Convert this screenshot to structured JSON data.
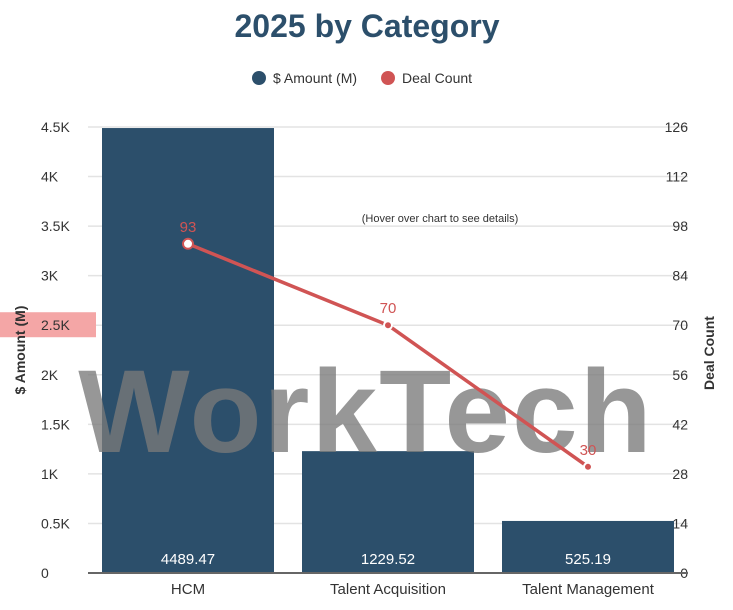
{
  "chart_data": {
    "type": "bar",
    "title": "2025 by Category",
    "categories": [
      "HCM",
      "Talent Acquisition",
      "Talent Management"
    ],
    "series": [
      {
        "name": "$ Amount (M)",
        "type": "bar",
        "axis": "left",
        "values": [
          4489.47,
          1229.52,
          525.19
        ],
        "color": "#2c4f6b"
      },
      {
        "name": "Deal Count",
        "type": "line",
        "axis": "right",
        "values": [
          93,
          70,
          30
        ],
        "color": "#d05454"
      }
    ],
    "ylabel": "$ Amount (M)",
    "y2label": "Deal Count",
    "ylim": [
      0,
      4500
    ],
    "y2lim": [
      0,
      126
    ],
    "yticks": [
      {
        "value": 0,
        "label": "0"
      },
      {
        "value": 500,
        "label": "0.5K"
      },
      {
        "value": 1000,
        "label": "1K"
      },
      {
        "value": 1500,
        "label": "1.5K"
      },
      {
        "value": 2000,
        "label": "2K"
      },
      {
        "value": 2500,
        "label": "2.5K"
      },
      {
        "value": 3000,
        "label": "3K"
      },
      {
        "value": 3500,
        "label": "3.5K"
      },
      {
        "value": 4000,
        "label": "4K"
      },
      {
        "value": 4500,
        "label": "4.5K"
      }
    ],
    "y2ticks": [
      {
        "value": 0,
        "label": "0"
      },
      {
        "value": 14,
        "label": "14"
      },
      {
        "value": 28,
        "label": "28"
      },
      {
        "value": 42,
        "label": "42"
      },
      {
        "value": 56,
        "label": "56"
      },
      {
        "value": 70,
        "label": "70"
      },
      {
        "value": 84,
        "label": "84"
      },
      {
        "value": 98,
        "label": "98"
      },
      {
        "value": 112,
        "label": "112"
      },
      {
        "value": 126,
        "label": "126"
      }
    ],
    "legend_position": "top-center",
    "grid": true,
    "annotation": "(Hover over chart to see details)",
    "highlighted_ytick": "2.5K",
    "highlight_color": "#f4a6a6"
  },
  "watermark": "WorkTech"
}
